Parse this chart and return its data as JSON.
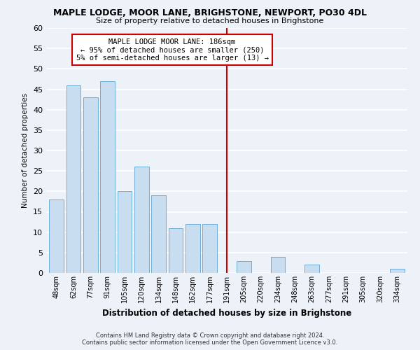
{
  "title": "MAPLE LODGE, MOOR LANE, BRIGHSTONE, NEWPORT, PO30 4DL",
  "subtitle": "Size of property relative to detached houses in Brighstone",
  "xlabel": "Distribution of detached houses by size in Brighstone",
  "ylabel": "Number of detached properties",
  "bar_labels": [
    "48sqm",
    "62sqm",
    "77sqm",
    "91sqm",
    "105sqm",
    "120sqm",
    "134sqm",
    "148sqm",
    "162sqm",
    "177sqm",
    "191sqm",
    "205sqm",
    "220sqm",
    "234sqm",
    "248sqm",
    "263sqm",
    "277sqm",
    "291sqm",
    "305sqm",
    "320sqm",
    "334sqm"
  ],
  "bar_values": [
    18,
    46,
    43,
    47,
    20,
    26,
    19,
    11,
    12,
    12,
    0,
    3,
    0,
    4,
    0,
    2,
    0,
    0,
    0,
    0,
    1
  ],
  "bar_color": "#c9ddf0",
  "bar_edge_color": "#6aaed6",
  "vline_x": 10,
  "vline_color": "#cc0000",
  "annotation_title": "MAPLE LODGE MOOR LANE: 186sqm",
  "annotation_line1": "← 95% of detached houses are smaller (250)",
  "annotation_line2": "5% of semi-detached houses are larger (13) →",
  "annotation_box_color": "#ffffff",
  "annotation_box_edge": "#cc0000",
  "ylim": [
    0,
    60
  ],
  "yticks": [
    0,
    5,
    10,
    15,
    20,
    25,
    30,
    35,
    40,
    45,
    50,
    55,
    60
  ],
  "footer_line1": "Contains HM Land Registry data © Crown copyright and database right 2024.",
  "footer_line2": "Contains public sector information licensed under the Open Government Licence v3.0.",
  "bg_color": "#edf2f9",
  "grid_color": "#ffffff"
}
